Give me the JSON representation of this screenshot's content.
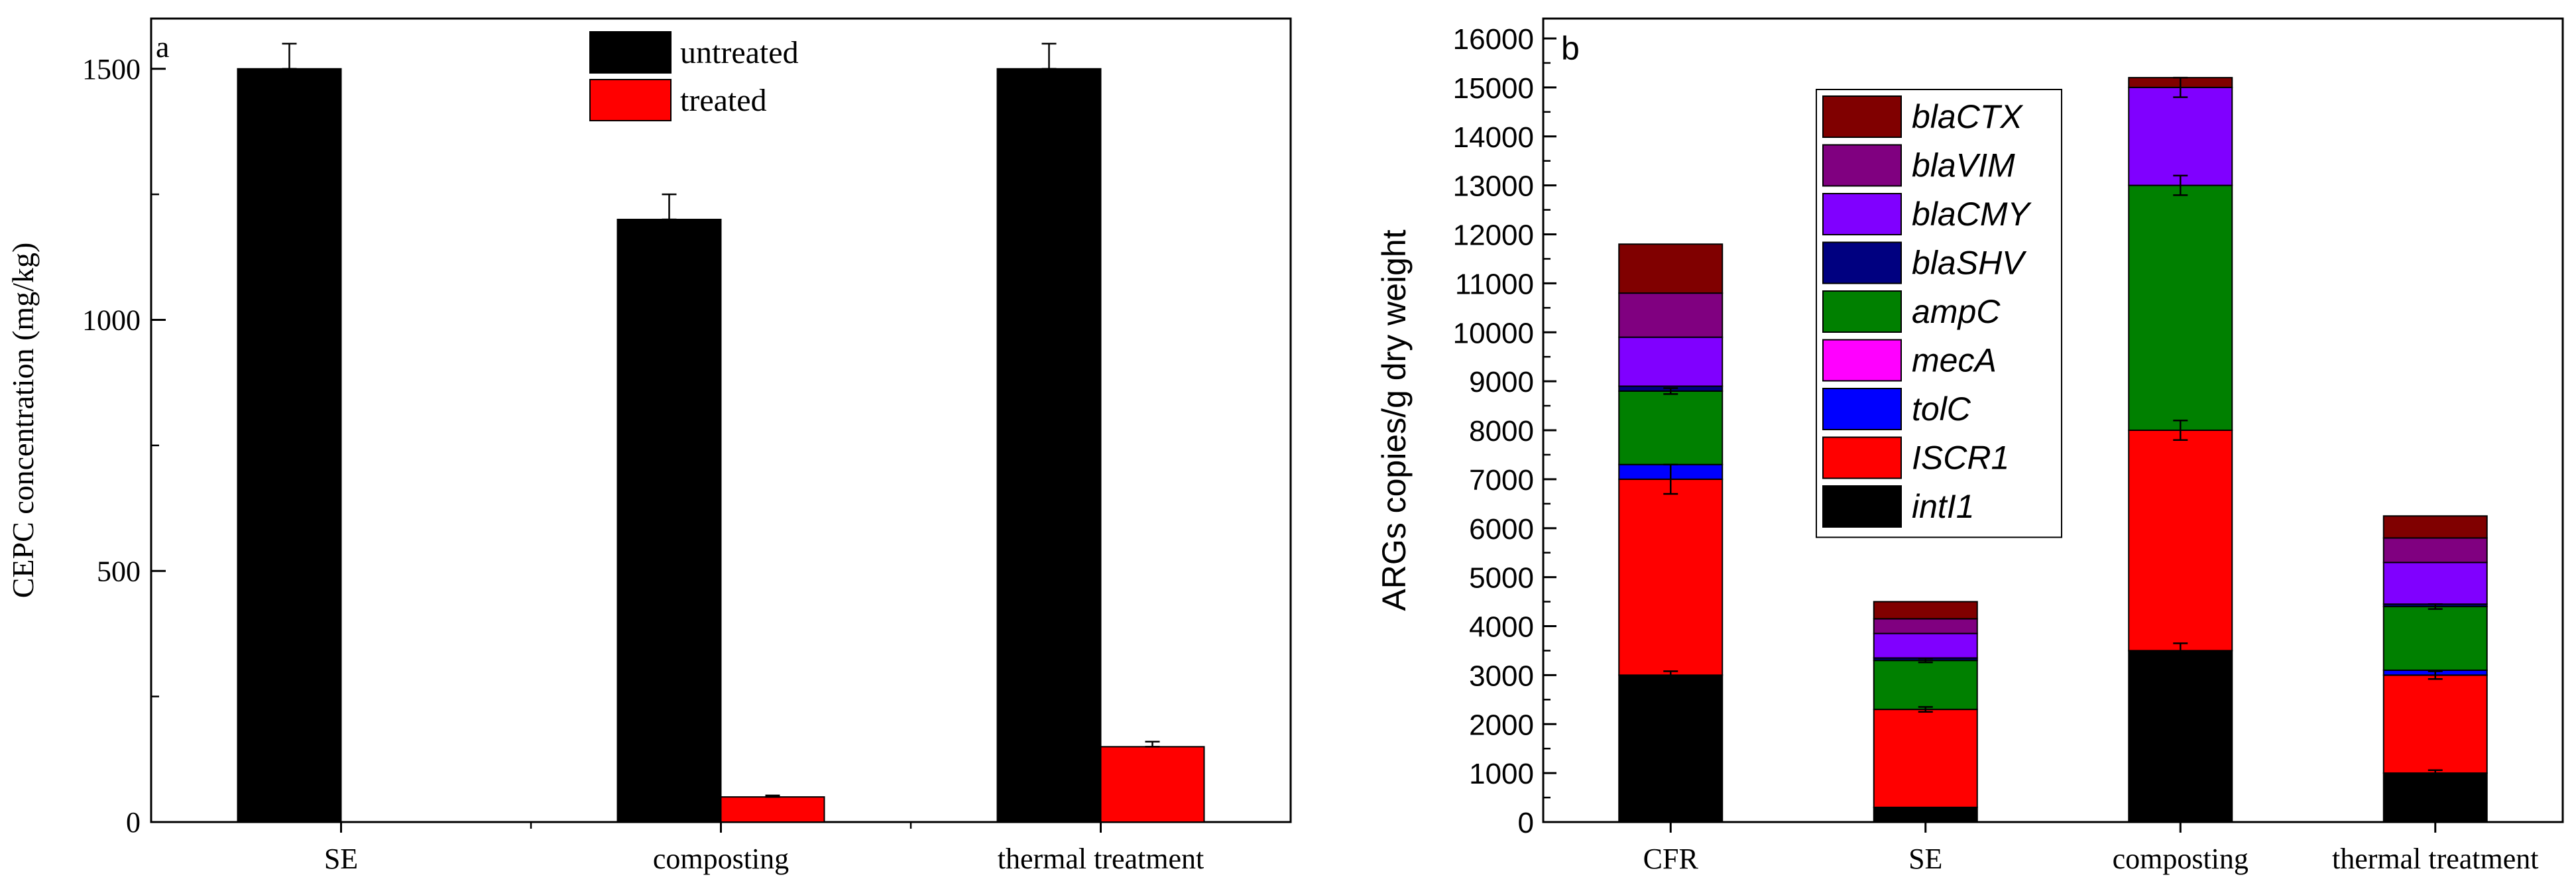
{
  "chart_data": [
    {
      "type": "bar",
      "panel_label": "a",
      "ylabel": "CEPC concentration (mg/kg)",
      "xlabel": "",
      "categories": [
        "SE",
        "composting",
        "thermal treatment"
      ],
      "ylim": [
        0,
        1600
      ],
      "yticks": [
        0,
        500,
        1000,
        1500
      ],
      "legend_position": "top-center",
      "grid": false,
      "series": [
        {
          "name": "untreated",
          "color": "#000000",
          "values": [
            1500,
            1200,
            1500
          ],
          "errors": [
            50,
            50,
            50
          ]
        },
        {
          "name": "treated",
          "color": "#ff0000",
          "values": [
            0,
            50,
            150
          ],
          "errors": [
            0,
            3,
            10
          ]
        }
      ]
    },
    {
      "type": "bar",
      "stacked": true,
      "panel_label": "b",
      "ylabel": "ARGs copies/g dry weight",
      "xlabel": "",
      "categories": [
        "CFR",
        "SE",
        "composting",
        "thermal treatment"
      ],
      "ylim": [
        0,
        16000
      ],
      "yticks": [
        0,
        1000,
        2000,
        3000,
        4000,
        5000,
        6000,
        7000,
        8000,
        9000,
        10000,
        11000,
        12000,
        13000,
        14000,
        15000,
        16000
      ],
      "legend_position": "top-center",
      "grid": false,
      "series": [
        {
          "name": "intI1",
          "color": "#000000",
          "values": [
            3000,
            300,
            3500,
            1000
          ],
          "errors": [
            80,
            0,
            150,
            60
          ]
        },
        {
          "name": "ISCR1",
          "color": "#ff0000",
          "values": [
            4000,
            2000,
            4500,
            2000
          ],
          "errors": [
            300,
            50,
            200,
            80
          ]
        },
        {
          "name": "tolC",
          "color": "#0000ff",
          "values": [
            300,
            0,
            0,
            100
          ],
          "errors": [
            0,
            0,
            0,
            0
          ]
        },
        {
          "name": "mecA",
          "color": "#ff00ff",
          "values": [
            0,
            0,
            0,
            0
          ],
          "errors": [
            0,
            0,
            0,
            0
          ]
        },
        {
          "name": "ampC",
          "color": "#008000",
          "values": [
            1500,
            1000,
            5000,
            1300
          ],
          "errors": [
            60,
            40,
            200,
            50
          ]
        },
        {
          "name": "blaSHV",
          "color": "#000080",
          "values": [
            100,
            50,
            0,
            50
          ],
          "errors": [
            0,
            0,
            0,
            0
          ]
        },
        {
          "name": "blaCMY",
          "color": "#8000ff",
          "values": [
            1000,
            500,
            2000,
            850
          ],
          "errors": [
            0,
            0,
            200,
            0
          ]
        },
        {
          "name": "blaVIM",
          "color": "#800080",
          "values": [
            900,
            300,
            0,
            500
          ],
          "errors": [
            0,
            0,
            0,
            0
          ]
        },
        {
          "name": "blaCTX",
          "color": "#800000",
          "values": [
            1000,
            350,
            200,
            450
          ],
          "errors": [
            0,
            0,
            0,
            0
          ]
        }
      ],
      "legend_order": [
        "blaCTX",
        "blaVIM",
        "blaCMY",
        "blaSHV",
        "ampC",
        "mecA",
        "tolC",
        "ISCR1",
        "intI1"
      ]
    }
  ]
}
